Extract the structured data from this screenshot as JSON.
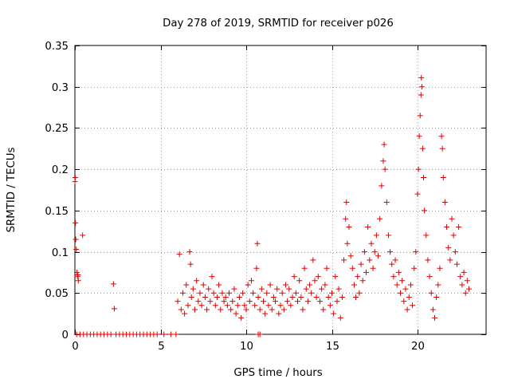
{
  "chart_data": {
    "type": "scatter",
    "title": "Day 278 of 2019, SRMTID for receiver p026",
    "xlabel": "GPS time / hours",
    "ylabel": "SRMTID / TECUs",
    "xlim": [
      0,
      24
    ],
    "ylim": [
      0,
      0.35
    ],
    "x_ticks": [
      0,
      5,
      10,
      15,
      20
    ],
    "x_tick_labels": [
      "0",
      "5",
      "10",
      "15",
      "20"
    ],
    "y_ticks": [
      0,
      0.05,
      0.1,
      0.15,
      0.2,
      0.25,
      0.3,
      0.35
    ],
    "y_tick_labels": [
      "0",
      "0.05",
      "0.1",
      "0.15",
      "0.2",
      "0.25",
      "0.3",
      "0.35"
    ],
    "grid": true,
    "marker": "plus",
    "series": [
      {
        "name": "p026",
        "color": "#e00000",
        "points": [
          [
            0.0,
            0.185
          ],
          [
            0.02,
            0.19
          ],
          [
            0.03,
            0.135
          ],
          [
            0.05,
            0.115
          ],
          [
            0.08,
            0.103
          ],
          [
            0.12,
            0.075
          ],
          [
            0.15,
            0.07
          ],
          [
            0.18,
            0.072
          ],
          [
            0.2,
            0.065
          ],
          [
            0.45,
            0.12
          ],
          [
            2.25,
            0.061
          ],
          [
            2.3,
            0.031
          ],
          [
            0.1,
            0.0
          ],
          [
            0.3,
            0.0
          ],
          [
            0.5,
            0.0
          ],
          [
            0.7,
            0.0
          ],
          [
            0.9,
            0.0
          ],
          [
            1.1,
            0.0
          ],
          [
            1.3,
            0.0
          ],
          [
            1.5,
            0.0
          ],
          [
            1.7,
            0.0
          ],
          [
            1.9,
            0.0
          ],
          [
            2.1,
            0.0
          ],
          [
            2.4,
            0.0
          ],
          [
            2.6,
            0.0
          ],
          [
            2.8,
            0.0
          ],
          [
            3.0,
            0.0
          ],
          [
            3.2,
            0.0
          ],
          [
            3.4,
            0.0
          ],
          [
            3.6,
            0.0
          ],
          [
            3.8,
            0.0
          ],
          [
            4.0,
            0.0
          ],
          [
            4.2,
            0.0
          ],
          [
            4.4,
            0.0
          ],
          [
            4.6,
            0.0
          ],
          [
            4.8,
            0.0
          ],
          [
            5.2,
            0.0
          ],
          [
            5.6,
            0.0
          ],
          [
            5.9,
            0.0
          ],
          [
            10.7,
            0.0
          ],
          [
            10.8,
            0.0
          ],
          [
            6.0,
            0.04
          ],
          [
            6.1,
            0.097
          ],
          [
            6.2,
            0.03
          ],
          [
            6.3,
            0.05
          ],
          [
            6.4,
            0.025
          ],
          [
            6.5,
            0.06
          ],
          [
            6.6,
            0.035
          ],
          [
            6.7,
            0.1
          ],
          [
            6.75,
            0.085
          ],
          [
            6.8,
            0.045
          ],
          [
            6.9,
            0.055
          ],
          [
            7.0,
            0.03
          ],
          [
            7.1,
            0.065
          ],
          [
            7.2,
            0.04
          ],
          [
            7.3,
            0.05
          ],
          [
            7.4,
            0.035
          ],
          [
            7.5,
            0.06
          ],
          [
            7.6,
            0.045
          ],
          [
            7.7,
            0.03
          ],
          [
            7.8,
            0.055
          ],
          [
            7.9,
            0.04
          ],
          [
            8.0,
            0.07
          ],
          [
            8.1,
            0.05
          ],
          [
            8.2,
            0.035
          ],
          [
            8.3,
            0.045
          ],
          [
            8.4,
            0.06
          ],
          [
            8.5,
            0.03
          ],
          [
            8.6,
            0.05
          ],
          [
            8.7,
            0.04
          ],
          [
            8.8,
            0.045
          ],
          [
            8.9,
            0.035
          ],
          [
            9.0,
            0.05
          ],
          [
            9.1,
            0.03
          ],
          [
            9.2,
            0.04
          ],
          [
            9.3,
            0.055
          ],
          [
            9.4,
            0.025
          ],
          [
            9.5,
            0.035
          ],
          [
            9.6,
            0.045
          ],
          [
            9.7,
            0.02
          ],
          [
            9.8,
            0.05
          ],
          [
            9.9,
            0.035
          ],
          [
            10.0,
            0.03
          ],
          [
            10.1,
            0.06
          ],
          [
            10.2,
            0.04
          ],
          [
            10.3,
            0.065
          ],
          [
            10.4,
            0.05
          ],
          [
            10.5,
            0.035
          ],
          [
            10.6,
            0.08
          ],
          [
            10.65,
            0.11
          ],
          [
            10.7,
            0.045
          ],
          [
            10.8,
            0.03
          ],
          [
            10.9,
            0.055
          ],
          [
            11.0,
            0.04
          ],
          [
            11.1,
            0.025
          ],
          [
            11.2,
            0.05
          ],
          [
            11.3,
            0.035
          ],
          [
            11.4,
            0.06
          ],
          [
            11.5,
            0.03
          ],
          [
            11.6,
            0.045
          ],
          [
            11.7,
            0.04
          ],
          [
            11.8,
            0.055
          ],
          [
            11.9,
            0.025
          ],
          [
            12.0,
            0.035
          ],
          [
            12.1,
            0.05
          ],
          [
            12.2,
            0.03
          ],
          [
            12.3,
            0.06
          ],
          [
            12.4,
            0.04
          ],
          [
            12.5,
            0.055
          ],
          [
            12.6,
            0.035
          ],
          [
            12.7,
            0.045
          ],
          [
            12.8,
            0.07
          ],
          [
            12.9,
            0.05
          ],
          [
            13.0,
            0.04
          ],
          [
            13.1,
            0.065
          ],
          [
            13.2,
            0.045
          ],
          [
            13.3,
            0.03
          ],
          [
            13.4,
            0.08
          ],
          [
            13.5,
            0.055
          ],
          [
            13.6,
            0.04
          ],
          [
            13.7,
            0.06
          ],
          [
            13.8,
            0.05
          ],
          [
            13.9,
            0.09
          ],
          [
            14.0,
            0.065
          ],
          [
            14.1,
            0.045
          ],
          [
            14.2,
            0.07
          ],
          [
            14.3,
            0.04
          ],
          [
            14.4,
            0.055
          ],
          [
            14.5,
            0.03
          ],
          [
            14.6,
            0.06
          ],
          [
            14.7,
            0.08
          ],
          [
            14.8,
            0.045
          ],
          [
            14.9,
            0.035
          ],
          [
            15.0,
            0.05
          ],
          [
            15.1,
            0.025
          ],
          [
            15.2,
            0.07
          ],
          [
            15.3,
            0.04
          ],
          [
            15.4,
            0.055
          ],
          [
            15.5,
            0.02
          ],
          [
            15.6,
            0.045
          ],
          [
            15.7,
            0.09
          ],
          [
            15.8,
            0.14
          ],
          [
            15.85,
            0.16
          ],
          [
            15.9,
            0.11
          ],
          [
            16.0,
            0.13
          ],
          [
            16.1,
            0.095
          ],
          [
            16.2,
            0.08
          ],
          [
            16.3,
            0.06
          ],
          [
            16.4,
            0.045
          ],
          [
            16.5,
            0.07
          ],
          [
            16.6,
            0.05
          ],
          [
            16.7,
            0.085
          ],
          [
            16.8,
            0.065
          ],
          [
            16.9,
            0.1
          ],
          [
            17.0,
            0.075
          ],
          [
            17.1,
            0.13
          ],
          [
            17.2,
            0.09
          ],
          [
            17.3,
            0.11
          ],
          [
            17.4,
            0.08
          ],
          [
            17.5,
            0.1
          ],
          [
            17.6,
            0.12
          ],
          [
            17.7,
            0.095
          ],
          [
            17.8,
            0.14
          ],
          [
            17.9,
            0.18
          ],
          [
            18.0,
            0.21
          ],
          [
            18.05,
            0.23
          ],
          [
            18.1,
            0.2
          ],
          [
            18.2,
            0.16
          ],
          [
            18.3,
            0.12
          ],
          [
            18.4,
            0.1
          ],
          [
            18.5,
            0.085
          ],
          [
            18.6,
            0.07
          ],
          [
            18.7,
            0.09
          ],
          [
            18.8,
            0.06
          ],
          [
            18.9,
            0.075
          ],
          [
            19.0,
            0.05
          ],
          [
            19.1,
            0.065
          ],
          [
            19.2,
            0.04
          ],
          [
            19.3,
            0.055
          ],
          [
            19.4,
            0.03
          ],
          [
            19.5,
            0.045
          ],
          [
            19.6,
            0.06
          ],
          [
            19.7,
            0.035
          ],
          [
            19.8,
            0.08
          ],
          [
            19.9,
            0.1
          ],
          [
            20.0,
            0.17
          ],
          [
            20.05,
            0.2
          ],
          [
            20.1,
            0.24
          ],
          [
            20.15,
            0.265
          ],
          [
            20.2,
            0.29
          ],
          [
            20.22,
            0.311
          ],
          [
            20.25,
            0.3
          ],
          [
            20.3,
            0.225
          ],
          [
            20.35,
            0.19
          ],
          [
            20.4,
            0.15
          ],
          [
            20.5,
            0.12
          ],
          [
            20.6,
            0.09
          ],
          [
            20.7,
            0.07
          ],
          [
            20.8,
            0.05
          ],
          [
            20.9,
            0.03
          ],
          [
            21.0,
            0.02
          ],
          [
            21.1,
            0.045
          ],
          [
            21.2,
            0.06
          ],
          [
            21.3,
            0.08
          ],
          [
            21.4,
            0.24
          ],
          [
            21.45,
            0.225
          ],
          [
            21.5,
            0.19
          ],
          [
            21.6,
            0.16
          ],
          [
            21.7,
            0.13
          ],
          [
            21.8,
            0.105
          ],
          [
            21.9,
            0.09
          ],
          [
            22.0,
            0.14
          ],
          [
            22.1,
            0.12
          ],
          [
            22.2,
            0.1
          ],
          [
            22.3,
            0.085
          ],
          [
            22.4,
            0.13
          ],
          [
            22.5,
            0.07
          ],
          [
            22.6,
            0.06
          ],
          [
            22.7,
            0.075
          ],
          [
            22.8,
            0.05
          ],
          [
            22.9,
            0.065
          ],
          [
            23.0,
            0.055
          ]
        ]
      }
    ]
  }
}
